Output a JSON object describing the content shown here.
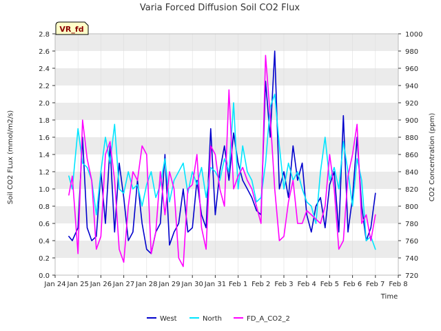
{
  "chart_data": {
    "type": "line",
    "title": "Varia Forced Diffusion Soil CO2 Flux",
    "badge": "VR_fd",
    "xlabel": "Time",
    "ylabel_left": "Soil CO2 FLux (mmol/m2/s)",
    "ylabel_right": "CO2 Concentration (ppm)",
    "xlim": [
      0,
      15
    ],
    "ylim_left": [
      0.0,
      2.8
    ],
    "ylim_right": [
      720,
      1000
    ],
    "x_ticks": [
      0,
      1,
      2,
      3,
      4,
      5,
      6,
      7,
      8,
      9,
      10,
      11,
      12,
      13,
      14,
      15
    ],
    "x_tick_labels": [
      "Jan 24",
      "Jan 25",
      "Jan 26",
      "Jan 27",
      "Jan 28",
      "Jan 29",
      "Jan 30",
      "Jan 31",
      "Feb 1",
      "Feb 2",
      "Feb 3",
      "Feb 4",
      "Feb 5",
      "Feb 6",
      "Feb 7",
      "Feb 8"
    ],
    "y_left_ticks": [
      "0.0",
      "0.2",
      "0.4",
      "0.6",
      "0.8",
      "1.0",
      "1.2",
      "1.4",
      "1.6",
      "1.8",
      "2.0",
      "2.2",
      "2.4",
      "2.6",
      "2.8"
    ],
    "y_right_ticks": [
      "720",
      "740",
      "760",
      "780",
      "800",
      "820",
      "840",
      "860",
      "880",
      "900",
      "920",
      "940",
      "960",
      "980",
      "1000"
    ],
    "series": [
      {
        "name": "West",
        "axis": "left",
        "color": "#0000cc",
        "x": [
          0.6,
          0.75,
          1.0,
          1.2,
          1.4,
          1.6,
          1.8,
          2.0,
          2.2,
          2.4,
          2.6,
          2.8,
          3.0,
          3.2,
          3.4,
          3.6,
          3.8,
          4.0,
          4.2,
          4.4,
          4.6,
          4.8,
          5.0,
          5.2,
          5.4,
          5.6,
          5.8,
          6.0,
          6.2,
          6.4,
          6.6,
          6.8,
          7.0,
          7.2,
          7.4,
          7.6,
          7.8,
          8.0,
          8.2,
          8.4,
          8.6,
          8.8,
          9.0,
          9.2,
          9.4,
          9.6,
          9.8,
          10.0,
          10.2,
          10.4,
          10.6,
          10.8,
          11.0,
          11.2,
          11.4,
          11.6,
          11.8,
          12.0,
          12.2,
          12.4,
          12.6,
          12.8,
          13.0,
          13.2,
          13.4,
          13.6,
          13.8,
          14.0
        ],
        "y": [
          0.45,
          0.4,
          0.55,
          1.6,
          0.55,
          0.4,
          0.45,
          1.2,
          0.6,
          1.5,
          0.5,
          1.3,
          0.9,
          0.4,
          0.5,
          1.1,
          0.6,
          0.3,
          0.25,
          0.5,
          0.6,
          1.4,
          0.35,
          0.5,
          0.6,
          1.0,
          0.5,
          0.55,
          1.1,
          0.7,
          0.55,
          1.7,
          0.7,
          1.2,
          1.5,
          1.1,
          1.65,
          1.3,
          1.1,
          1.0,
          0.9,
          0.75,
          0.7,
          2.25,
          1.6,
          2.6,
          1.0,
          1.2,
          0.9,
          1.5,
          1.1,
          1.3,
          0.7,
          0.5,
          0.8,
          0.9,
          0.55,
          1.05,
          1.2,
          0.5,
          1.85,
          0.5,
          0.9,
          1.6,
          0.8,
          0.4,
          0.55,
          0.95
        ]
      },
      {
        "name": "North",
        "axis": "left",
        "color": "#00e5ff",
        "x": [
          0.6,
          0.75,
          1.0,
          1.2,
          1.4,
          1.6,
          1.8,
          2.0,
          2.2,
          2.4,
          2.6,
          2.8,
          3.0,
          3.2,
          3.4,
          3.6,
          3.8,
          4.0,
          4.2,
          4.4,
          4.6,
          4.8,
          5.0,
          5.2,
          5.4,
          5.6,
          5.8,
          6.0,
          6.2,
          6.4,
          6.6,
          6.8,
          7.0,
          7.2,
          7.4,
          7.6,
          7.8,
          8.0,
          8.2,
          8.4,
          8.6,
          8.8,
          9.0,
          9.2,
          9.4,
          9.6,
          9.8,
          10.0,
          10.2,
          10.4,
          10.6,
          10.8,
          11.0,
          11.2,
          11.4,
          11.6,
          11.8,
          12.0,
          12.2,
          12.4,
          12.6,
          12.8,
          13.0,
          13.2,
          13.4,
          13.6,
          13.8,
          14.0
        ],
        "y": [
          1.15,
          1.0,
          1.7,
          1.3,
          1.25,
          1.1,
          0.7,
          1.2,
          1.6,
          1.3,
          1.75,
          1.0,
          0.95,
          1.2,
          1.0,
          1.05,
          0.8,
          1.05,
          1.2,
          0.9,
          1.05,
          1.35,
          0.85,
          1.1,
          1.2,
          1.3,
          0.95,
          1.2,
          1.05,
          1.25,
          0.9,
          1.25,
          1.2,
          1.1,
          1.35,
          1.2,
          2.0,
          1.0,
          1.5,
          1.2,
          1.1,
          0.85,
          0.9,
          1.3,
          1.95,
          2.1,
          1.5,
          1.0,
          1.3,
          1.1,
          1.2,
          1.0,
          0.85,
          0.8,
          0.6,
          1.2,
          1.6,
          1.1,
          1.25,
          1.0,
          1.55,
          1.2,
          0.8,
          1.35,
          1.1,
          0.4,
          0.45,
          0.3
        ]
      },
      {
        "name": "FD_A_CO2_2",
        "axis": "right",
        "color": "#ff00ff",
        "x": [
          0.6,
          0.75,
          1.0,
          1.2,
          1.4,
          1.6,
          1.8,
          2.0,
          2.2,
          2.4,
          2.6,
          2.8,
          3.0,
          3.2,
          3.4,
          3.6,
          3.8,
          4.0,
          4.2,
          4.4,
          4.6,
          4.8,
          5.0,
          5.2,
          5.4,
          5.6,
          5.8,
          6.0,
          6.2,
          6.4,
          6.6,
          6.8,
          7.0,
          7.2,
          7.4,
          7.6,
          7.8,
          8.0,
          8.2,
          8.4,
          8.6,
          8.8,
          9.0,
          9.2,
          9.4,
          9.6,
          9.8,
          10.0,
          10.2,
          10.4,
          10.6,
          10.8,
          11.0,
          11.2,
          11.4,
          11.6,
          11.8,
          12.0,
          12.2,
          12.4,
          12.6,
          12.8,
          13.0,
          13.2,
          13.4,
          13.6,
          13.8,
          14.0
        ],
        "y": [
          813,
          835,
          745,
          900,
          855,
          830,
          750,
          765,
          860,
          875,
          830,
          750,
          735,
          800,
          840,
          830,
          870,
          860,
          745,
          770,
          840,
          790,
          840,
          820,
          740,
          730,
          820,
          825,
          860,
          775,
          750,
          870,
          860,
          820,
          800,
          935,
          820,
          835,
          845,
          830,
          820,
          800,
          780,
          975,
          905,
          820,
          760,
          765,
          805,
          830,
          780,
          780,
          795,
          790,
          785,
          780,
          800,
          860,
          820,
          750,
          760,
          835,
          860,
          895,
          780,
          790,
          760,
          790
        ]
      }
    ],
    "legend": [
      "West",
      "North",
      "FD_A_CO2_2"
    ]
  }
}
